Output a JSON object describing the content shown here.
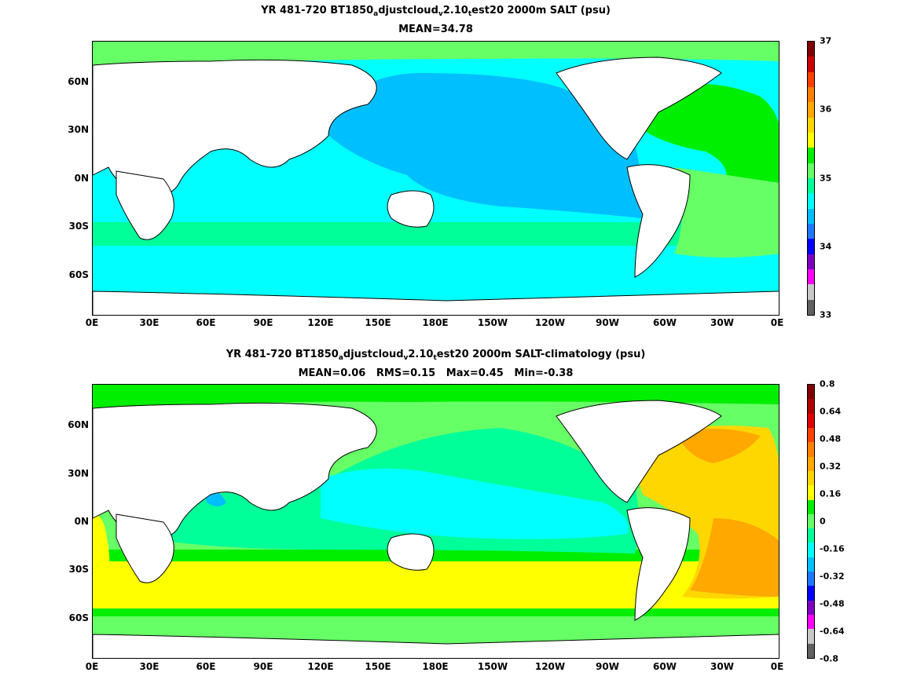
{
  "chart_data": [
    {
      "type": "heatmap",
      "title_parts": [
        "YR 481-720 BT1850",
        "a",
        "djustcloud",
        "v",
        "2.10",
        "t",
        "est20 2000m SALT (psu)"
      ],
      "subtitle": "MEAN=34.78",
      "x_ticks": [
        "0E",
        "30E",
        "60E",
        "90E",
        "120E",
        "150E",
        "180E",
        "150W",
        "120W",
        "90W",
        "60W",
        "30W",
        "0E"
      ],
      "y_ticks": [
        "60N",
        "30N",
        "0N",
        "30S",
        "60S"
      ],
      "colorbar_labels": [
        "37",
        "36",
        "35",
        "34",
        "33"
      ],
      "colorbar_colors": [
        "#800000",
        "#cc0000",
        "#ff4000",
        "#ff8000",
        "#ffa800",
        "#ffd700",
        "#ffff00",
        "#00ee00",
        "#66ff66",
        "#00ff99",
        "#00ffff",
        "#00bfff",
        "#1e78ff",
        "#0000ff",
        "#8000c0",
        "#ff00ff",
        "#c8c8c8",
        "#606060"
      ],
      "value_range": [
        33,
        37
      ],
      "approx_fields": {
        "Atlantic": "35.0-35.2",
        "North Pacific": "34.6-34.7",
        "Southern Ocean": "34.7-34.8",
        "Indian Ocean": "34.7-34.9"
      }
    },
    {
      "type": "heatmap",
      "title_parts": [
        "YR 481-720 BT1850",
        "a",
        "djustcloud",
        "v",
        "2.10",
        "t",
        "est20 2000m SALT-climatology (psu)"
      ],
      "subtitle": "MEAN=0.06   RMS=0.15   Max=0.45   Min=-0.38",
      "x_ticks": [
        "0E",
        "30E",
        "60E",
        "90E",
        "120E",
        "150E",
        "180E",
        "150W",
        "120W",
        "90W",
        "60W",
        "30W",
        "0E"
      ],
      "y_ticks": [
        "60N",
        "30N",
        "0N",
        "30S",
        "60S"
      ],
      "colorbar_labels": [
        "0.8",
        "0.64",
        "0.48",
        "0.32",
        "0.16",
        "0",
        "-0.16",
        "-0.32",
        "-0.48",
        "-0.64",
        "-0.8"
      ],
      "colorbar_colors": [
        "#800000",
        "#b00000",
        "#e00000",
        "#ff4000",
        "#ff8000",
        "#ffa800",
        "#ffd700",
        "#ffff00",
        "#00ee00",
        "#66ff66",
        "#00ff99",
        "#00ffff",
        "#00bfff",
        "#1e78ff",
        "#0000ff",
        "#8000c0",
        "#ff00ff",
        "#c8c8c8",
        "#606060"
      ],
      "value_range": [
        -0.8,
        0.8
      ],
      "stats": {
        "mean": 0.06,
        "rms": 0.15,
        "max": 0.45,
        "min": -0.38
      }
    }
  ]
}
